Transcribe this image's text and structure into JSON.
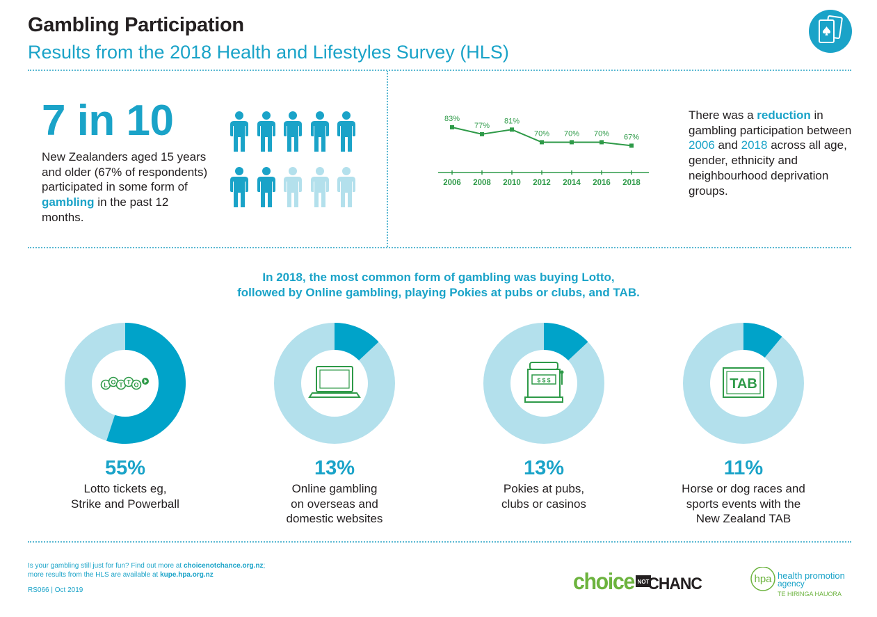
{
  "header": {
    "title": "Gambling Participation",
    "subtitle": "Results from the 2018 Health and Lifestyles Survey (HLS)",
    "icon": "playing-cards-icon"
  },
  "participation": {
    "ratio": "7 in 10",
    "text_before": "New Zealanders aged 15 years and older (67% of respondents) participated in some form of ",
    "highlight": "gambling",
    "text_after": " in the past 12 months.",
    "people_total": 10,
    "people_filled": 7,
    "colors": {
      "filled": "#1aa3c8",
      "empty": "#b3e0ec"
    }
  },
  "chart_data": {
    "type": "line",
    "x": [
      "2006",
      "2008",
      "2010",
      "2012",
      "2014",
      "2016",
      "2018"
    ],
    "series": [
      {
        "values": [
          83,
          77,
          81,
          70,
          70,
          70,
          67
        ]
      }
    ],
    "data_labels": [
      "83%",
      "77%",
      "81%",
      "70%",
      "70%",
      "70%",
      "67%"
    ],
    "title": "",
    "xlabel": "",
    "ylabel": "",
    "grid": false,
    "color": "#2e9a48"
  },
  "reduction": {
    "t1": "There was a ",
    "t2": "reduction",
    "t3": " in gambling participation between ",
    "t4": "2006",
    "t5": " and ",
    "t6": "2018",
    "t7": " across all age, gender, ethnicity and neighbourhood deprivation groups."
  },
  "headline": {
    "line1": "In 2018, the most common form of gambling was buying Lotto,",
    "line2": "followed by Online gambling, playing Pokies at pubs or clubs, and TAB."
  },
  "forms": [
    {
      "percent": "55%",
      "value": 55,
      "caption_lines": [
        "Lotto tickets eg,",
        "Strike and Powerball"
      ],
      "icon": "lotto-logo-icon",
      "icon_text": "LOTTO"
    },
    {
      "percent": "13%",
      "value": 13,
      "caption_lines": [
        "Online gambling",
        "on overseas and",
        "domestic websites"
      ],
      "icon": "laptop-icon"
    },
    {
      "percent": "13%",
      "value": 13,
      "caption_lines": [
        "Pokies at pubs,",
        "clubs or casinos"
      ],
      "icon": "pokie-machine-icon",
      "icon_text": "$ $ $"
    },
    {
      "percent": "11%",
      "value": 11,
      "caption_lines": [
        "Horse or dog races and",
        "sports events with the",
        "New Zealand TAB"
      ],
      "icon": "tab-logo-icon",
      "icon_text": "TAB"
    }
  ],
  "donut_colors": {
    "fill": "#00a3c9",
    "track": "#b3e0ec",
    "icon_green": "#2e9a48"
  },
  "footer": {
    "line1_prefix": "Is your gambling still just for fun? Find out more at ",
    "line1_link": "choicenotchance.org.nz",
    "line1_suffix": ";",
    "line2_prefix": "more results from the HLS are available at ",
    "line2_link": "kupe.hpa.org.nz",
    "code": "RS066 | Oct 2019"
  },
  "logos": {
    "choice": "choice",
    "not": "NOT",
    "chance": "CHANCE",
    "hpa_mark": "hpa",
    "hpa_line1": "health promotion",
    "hpa_line2": "agency",
    "hpa_line3": "TE HIRINGA HAUORA"
  }
}
